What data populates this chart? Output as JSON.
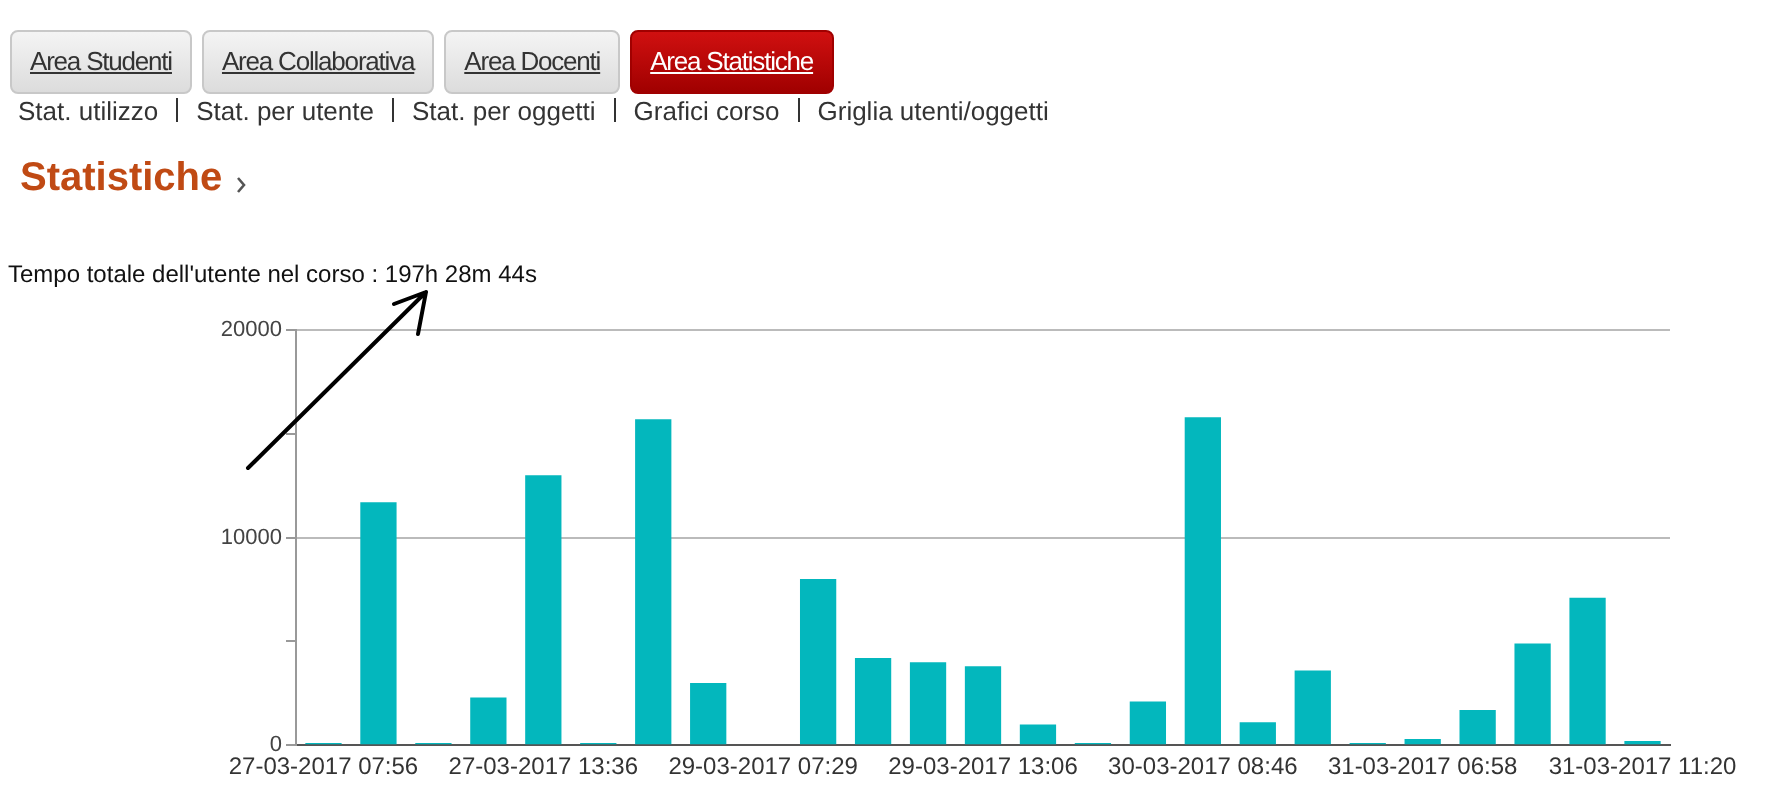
{
  "chart_data": {
    "type": "bar",
    "title": "Statistiche",
    "subtitle": "Tempo totale dell'utente nel corso : 197h 28m 44s",
    "annotations": [
      "Area Studenti",
      "Area Collaborativa",
      "Area Docenti",
      "Area Statistiche",
      "Stat. utilizzo",
      "Stat. per utente",
      "Stat. per oggetti",
      "Grafici corso",
      "Griglia utenti/oggetti"
    ],
    "categories": [
      "27-03-2017 07:56",
      null,
      null,
      null,
      "27-03-2017 13:36",
      null,
      null,
      null,
      "29-03-2017 07:29",
      null,
      null,
      null,
      "29-03-2017 13:06",
      null,
      null,
      null,
      "30-03-2017 08:46",
      null,
      null,
      null,
      "31-03-2017 06:58",
      null,
      null,
      null,
      "31-03-2017 11:20"
    ],
    "values": [
      100,
      11700,
      100,
      2300,
      13000,
      100,
      15700,
      3000,
      0,
      8000,
      4200,
      4000,
      3800,
      1000,
      100,
      2100,
      15800,
      1100,
      3600,
      100,
      300,
      1700,
      4900,
      7100,
      200
    ],
    "color": "#03b7bd",
    "ylim": [
      0,
      20000
    ],
    "yticks": [
      0,
      {
        "value": 5000,
        "label": null
      },
      10000,
      {
        "value": 15000,
        "label": null
      },
      20000
    ],
    "grid": "y",
    "legend": false
  }
}
